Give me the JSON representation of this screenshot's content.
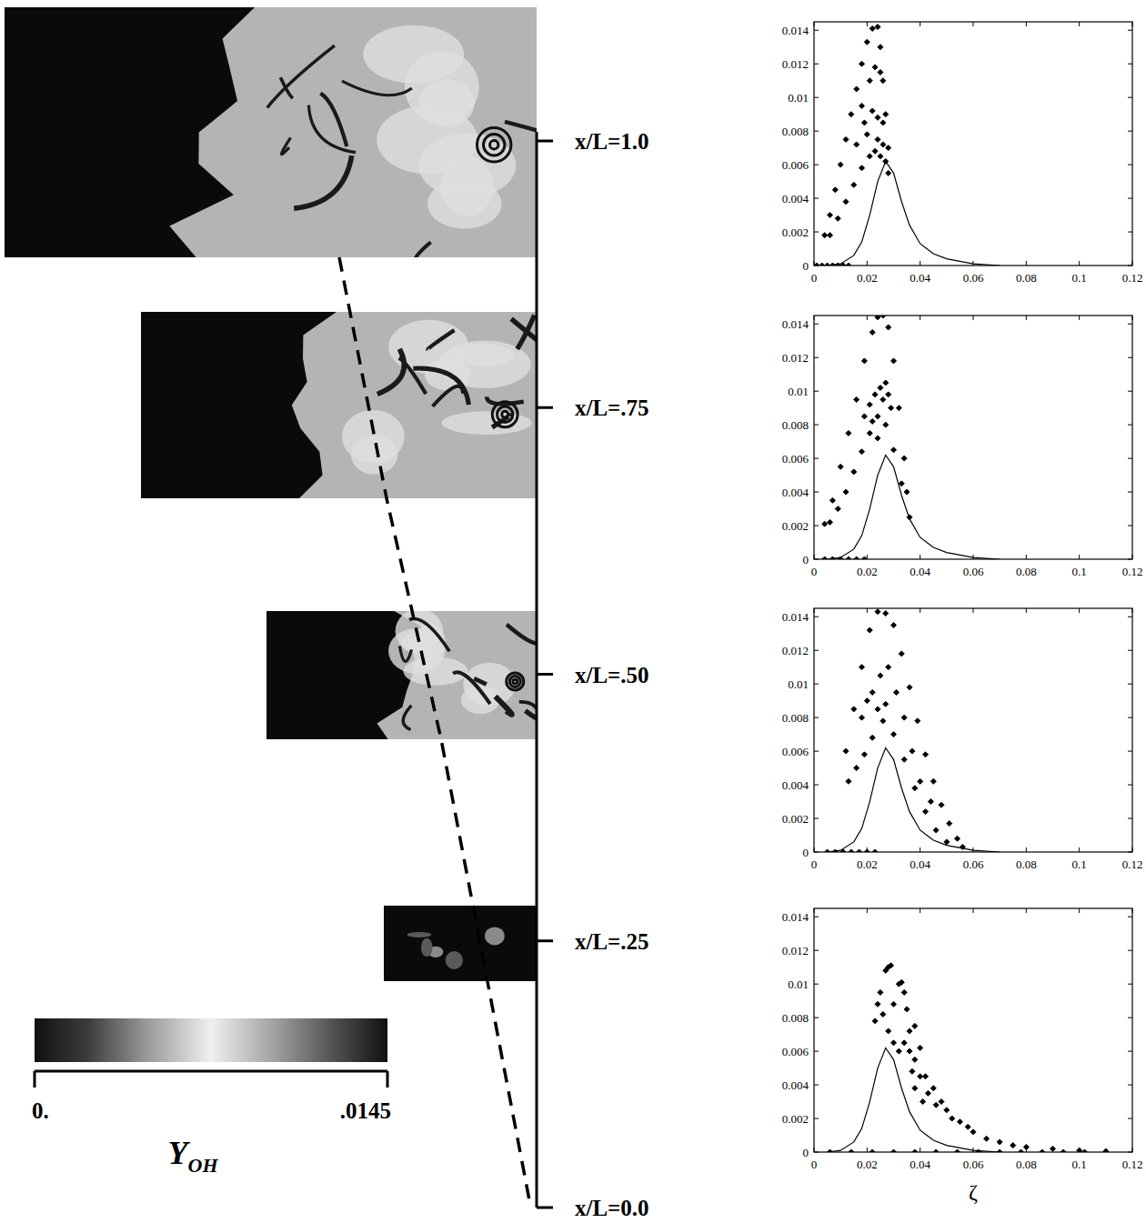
{
  "chart_data": [
    {
      "type": "scatter",
      "xlim": [
        0,
        0.12
      ],
      "ylim": [
        0,
        0.0145
      ],
      "xticks": [
        0,
        0.02,
        0.04,
        0.06,
        0.08,
        0.1,
        0.12
      ],
      "yticks": [
        0,
        0.002,
        0.004,
        0.006,
        0.008,
        0.01,
        0.012,
        0.014
      ],
      "series": [
        {
          "type": "scatter",
          "marker": "diamond",
          "color": "#000000",
          "x": [
            0.001,
            0.003,
            0.005,
            0.007,
            0.009,
            0.011,
            0.013,
            0.004,
            0.006,
            0.008,
            0.01,
            0.012,
            0.014,
            0.016,
            0.018,
            0.02,
            0.022,
            0.024,
            0.025,
            0.026,
            0.027,
            0.028,
            0.028,
            0.006,
            0.009,
            0.012,
            0.015,
            0.018,
            0.021,
            0.023,
            0.025,
            0.027,
            0.016,
            0.019,
            0.022,
            0.024,
            0.026,
            0.018,
            0.021,
            0.023,
            0.025,
            0.02,
            0.024,
            0.026
          ],
          "values": [
            0,
            0,
            0,
            0,
            0,
            0,
            0,
            0.0018,
            0.003,
            0.0045,
            0.006,
            0.0075,
            0.009,
            0.0105,
            0.012,
            0.0133,
            0.0141,
            0.0142,
            0.013,
            0.011,
            0.009,
            0.007,
            0.0055,
            0.0018,
            0.0028,
            0.0038,
            0.0048,
            0.0058,
            0.0065,
            0.0068,
            0.0065,
            0.0062,
            0.0072,
            0.0085,
            0.0092,
            0.0088,
            0.0085,
            0.0095,
            0.011,
            0.0118,
            0.0115,
            0.0078,
            0.0075,
            0.0072
          ]
        },
        {
          "type": "line",
          "line_style": "solid",
          "color": "#000000",
          "x": [
            0.005,
            0.01,
            0.015,
            0.018,
            0.021,
            0.024,
            0.027,
            0.03,
            0.033,
            0.036,
            0.04,
            0.045,
            0.05,
            0.06,
            0.07
          ],
          "values": [
            0,
            0.0001,
            0.0006,
            0.0014,
            0.003,
            0.005,
            0.0062,
            0.0055,
            0.0038,
            0.0024,
            0.0013,
            0.0007,
            0.0004,
            0.0001,
            0
          ]
        }
      ]
    },
    {
      "type": "scatter",
      "xlim": [
        0,
        0.12
      ],
      "ylim": [
        0,
        0.0145
      ],
      "xticks": [
        0,
        0.02,
        0.04,
        0.06,
        0.08,
        0.1,
        0.12
      ],
      "yticks": [
        0,
        0.002,
        0.004,
        0.006,
        0.008,
        0.01,
        0.012,
        0.014
      ],
      "series": [
        {
          "type": "scatter",
          "marker": "diamond",
          "color": "#000000",
          "x": [
            0.004,
            0.007,
            0.01,
            0.013,
            0.016,
            0.019,
            0.004,
            0.007,
            0.01,
            0.013,
            0.016,
            0.019,
            0.022,
            0.024,
            0.026,
            0.028,
            0.03,
            0.032,
            0.034,
            0.035,
            0.036,
            0.006,
            0.009,
            0.012,
            0.015,
            0.018,
            0.021,
            0.024,
            0.027,
            0.03,
            0.033,
            0.019,
            0.021,
            0.023,
            0.025,
            0.026,
            0.022,
            0.024,
            0.027,
            0.028,
            0.029
          ],
          "values": [
            0,
            0,
            0,
            0,
            0,
            0,
            0.0021,
            0.0035,
            0.0055,
            0.0075,
            0.0095,
            0.0118,
            0.0135,
            0.0144,
            0.0145,
            0.0138,
            0.0118,
            0.009,
            0.006,
            0.004,
            0.0025,
            0.0022,
            0.003,
            0.004,
            0.0052,
            0.0064,
            0.0075,
            0.0085,
            0.008,
            0.0065,
            0.0045,
            0.0085,
            0.0092,
            0.0098,
            0.0102,
            0.0095,
            0.0082,
            0.0072,
            0.0105,
            0.0098,
            0.009
          ]
        },
        {
          "type": "line",
          "line_style": "solid",
          "color": "#000000",
          "x": [
            0.005,
            0.01,
            0.015,
            0.018,
            0.021,
            0.024,
            0.027,
            0.03,
            0.033,
            0.036,
            0.04,
            0.045,
            0.05,
            0.06,
            0.07
          ],
          "values": [
            0,
            0.0001,
            0.0006,
            0.0014,
            0.003,
            0.005,
            0.0062,
            0.0055,
            0.0038,
            0.0024,
            0.0013,
            0.0007,
            0.0004,
            0.0001,
            0
          ]
        }
      ]
    },
    {
      "type": "scatter",
      "xlim": [
        0,
        0.12
      ],
      "ylim": [
        0,
        0.0145
      ],
      "xticks": [
        0,
        0.02,
        0.04,
        0.06,
        0.08,
        0.1,
        0.12
      ],
      "yticks": [
        0,
        0.002,
        0.004,
        0.006,
        0.008,
        0.01,
        0.012,
        0.014
      ],
      "series": [
        {
          "type": "scatter",
          "marker": "diamond",
          "color": "#000000",
          "x": [
            0.005,
            0.008,
            0.011,
            0.014,
            0.017,
            0.02,
            0.023,
            0.012,
            0.015,
            0.018,
            0.021,
            0.024,
            0.027,
            0.03,
            0.033,
            0.036,
            0.039,
            0.042,
            0.045,
            0.048,
            0.051,
            0.054,
            0.056,
            0.013,
            0.016,
            0.019,
            0.022,
            0.026,
            0.03,
            0.034,
            0.038,
            0.042,
            0.046,
            0.05,
            0.018,
            0.02,
            0.022,
            0.025,
            0.028,
            0.031,
            0.034,
            0.037,
            0.04,
            0.044,
            0.024,
            0.027
          ],
          "values": [
            0,
            0,
            0,
            0,
            0,
            0,
            0,
            0.006,
            0.0085,
            0.011,
            0.0132,
            0.0143,
            0.0142,
            0.0135,
            0.0118,
            0.0098,
            0.0078,
            0.0058,
            0.0042,
            0.0028,
            0.0017,
            0.0008,
            0.0003,
            0.0042,
            0.005,
            0.0058,
            0.0068,
            0.0078,
            0.007,
            0.0055,
            0.0038,
            0.0024,
            0.0013,
            0.0006,
            0.008,
            0.009,
            0.0095,
            0.0105,
            0.011,
            0.0095,
            0.008,
            0.006,
            0.0042,
            0.003,
            0.0085,
            0.0088
          ]
        },
        {
          "type": "line",
          "line_style": "solid",
          "color": "#000000",
          "x": [
            0.005,
            0.01,
            0.015,
            0.018,
            0.021,
            0.024,
            0.027,
            0.03,
            0.033,
            0.036,
            0.04,
            0.045,
            0.05,
            0.06,
            0.07
          ],
          "values": [
            0,
            0.0001,
            0.0006,
            0.0014,
            0.003,
            0.005,
            0.0062,
            0.0055,
            0.0038,
            0.0024,
            0.0013,
            0.0007,
            0.0004,
            0.0001,
            0
          ]
        }
      ]
    },
    {
      "type": "scatter",
      "x_label": "ζ",
      "xlim": [
        0,
        0.12
      ],
      "ylim": [
        0,
        0.0145
      ],
      "xticks": [
        0,
        0.02,
        0.04,
        0.06,
        0.08,
        0.1,
        0.12
      ],
      "yticks": [
        0,
        0.002,
        0.004,
        0.006,
        0.008,
        0.01,
        0.012,
        0.014
      ],
      "series": [
        {
          "type": "scatter",
          "marker": "diamond",
          "color": "#000000",
          "x": [
            0.006,
            0.014,
            0.022,
            0.03,
            0.038,
            0.046,
            0.054,
            0.062,
            0.07,
            0.078,
            0.086,
            0.094,
            0.102,
            0.11,
            0.027,
            0.028,
            0.029,
            0.025,
            0.024,
            0.023,
            0.026,
            0.03,
            0.032,
            0.033,
            0.034,
            0.035,
            0.028,
            0.03,
            0.032,
            0.034,
            0.036,
            0.038,
            0.036,
            0.038,
            0.04,
            0.037,
            0.04,
            0.042,
            0.045,
            0.048,
            0.05,
            0.055,
            0.06,
            0.065,
            0.07,
            0.075,
            0.08,
            0.09,
            0.1,
            0.11,
            0.043,
            0.046,
            0.052,
            0.058,
            0.038,
            0.041
          ],
          "values": [
            0,
            0,
            0,
            0,
            0,
            0,
            0,
            0,
            0,
            0,
            0,
            0,
            0,
            0,
            0.0108,
            0.011,
            0.0111,
            0.0095,
            0.0088,
            0.0078,
            0.0082,
            0.0088,
            0.01,
            0.0101,
            0.0095,
            0.0085,
            0.0072,
            0.0065,
            0.006,
            0.0065,
            0.0072,
            0.0075,
            0.006,
            0.0055,
            0.0062,
            0.0048,
            0.0045,
            0.0045,
            0.0038,
            0.003,
            0.0025,
            0.0018,
            0.0012,
            0.0008,
            0.0006,
            0.0004,
            0.0003,
            0.0002,
            0.0001,
            5e-05,
            0.0035,
            0.0028,
            0.002,
            0.0015,
            0.0038,
            0.003
          ]
        },
        {
          "type": "line",
          "line_style": "solid",
          "color": "#000000",
          "x": [
            0.005,
            0.01,
            0.015,
            0.018,
            0.021,
            0.024,
            0.027,
            0.03,
            0.033,
            0.036,
            0.04,
            0.045,
            0.05,
            0.06,
            0.07
          ],
          "values": [
            0,
            0.0001,
            0.0006,
            0.0014,
            0.003,
            0.005,
            0.0062,
            0.0055,
            0.0038,
            0.0024,
            0.0013,
            0.0007,
            0.0004,
            0.0001,
            0
          ]
        }
      ]
    }
  ],
  "station_axis": {
    "lim": [
      0,
      1
    ],
    "ticks": [
      {
        "value": 1,
        "label": "x/L=1.0"
      },
      {
        "value": 0.75,
        "label": "x/L=.75"
      },
      {
        "value": 0.5,
        "label": "x/L=.50"
      },
      {
        "value": 0.25,
        "label": "x/L=.25"
      },
      {
        "value": 0,
        "label": "x/L=0.0"
      }
    ]
  },
  "colorbar": {
    "symbol": "Y",
    "subscript": "OH",
    "range": [
      0,
      0.0145
    ],
    "ticks": [
      {
        "value": 0,
        "label": "0."
      },
      {
        "value": 0.0145,
        "label": ".0145"
      }
    ]
  }
}
